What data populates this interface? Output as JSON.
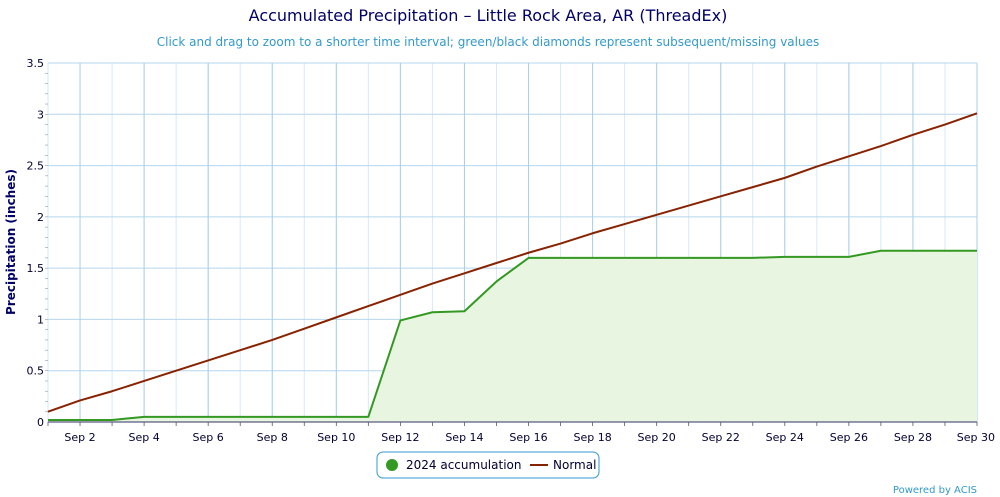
{
  "chart_data": {
    "type": "line",
    "title": "Accumulated Precipitation – Little Rock Area, AR (ThreadEx)",
    "subtitle": "Click and drag to zoom to a shorter time interval; green/black diamonds represent subsequent/missing values",
    "ylabel": "Precipitation (inches)",
    "xlabel": "",
    "ylim": [
      0,
      3.5
    ],
    "y_ticks": [
      "0",
      "0.5",
      "1",
      "1.5",
      "2",
      "2.5",
      "3",
      "3.5"
    ],
    "x_day_range": [
      1,
      30
    ],
    "x_tick_days": [
      2,
      4,
      6,
      8,
      10,
      12,
      14,
      16,
      18,
      20,
      22,
      24,
      26,
      28,
      30
    ],
    "x_ticks": [
      "Sep 2",
      "Sep 4",
      "Sep 6",
      "Sep 8",
      "Sep 10",
      "Sep 12",
      "Sep 14",
      "Sep 16",
      "Sep 18",
      "Sep 20",
      "Sep 22",
      "Sep 24",
      "Sep 26",
      "Sep 28",
      "Sep 30"
    ],
    "grid": true,
    "legend_position": "bottom-center",
    "series": [
      {
        "name": "2024 accumulation",
        "color": "#339922",
        "fill": "#e8f5e0",
        "x": [
          1,
          2,
          3,
          4,
          5,
          6,
          7,
          8,
          9,
          10,
          11,
          12,
          13,
          14,
          15,
          16,
          17,
          18,
          19,
          20,
          21,
          22,
          23,
          24,
          25,
          26,
          27,
          28,
          29,
          30
        ],
        "values": [
          0.02,
          0.02,
          0.02,
          0.05,
          0.05,
          0.05,
          0.05,
          0.05,
          0.05,
          0.05,
          0.05,
          0.99,
          1.07,
          1.08,
          1.37,
          1.6,
          1.6,
          1.6,
          1.6,
          1.6,
          1.6,
          1.6,
          1.6,
          1.61,
          1.61,
          1.61,
          1.67,
          1.67,
          1.67,
          1.67
        ]
      },
      {
        "name": "Normal",
        "color": "#882200",
        "x": [
          1,
          2,
          3,
          4,
          5,
          6,
          7,
          8,
          9,
          10,
          11,
          12,
          13,
          14,
          15,
          16,
          17,
          18,
          19,
          20,
          21,
          22,
          23,
          24,
          25,
          26,
          27,
          28,
          29,
          30
        ],
        "values": [
          0.1,
          0.21,
          0.3,
          0.4,
          0.5,
          0.6,
          0.7,
          0.8,
          0.91,
          1.02,
          1.13,
          1.24,
          1.35,
          1.45,
          1.55,
          1.65,
          1.74,
          1.84,
          1.93,
          2.02,
          2.11,
          2.2,
          2.29,
          2.38,
          2.49,
          2.59,
          2.69,
          2.8,
          2.9,
          3.01
        ]
      }
    ]
  },
  "credit": "Powered by ACIS"
}
